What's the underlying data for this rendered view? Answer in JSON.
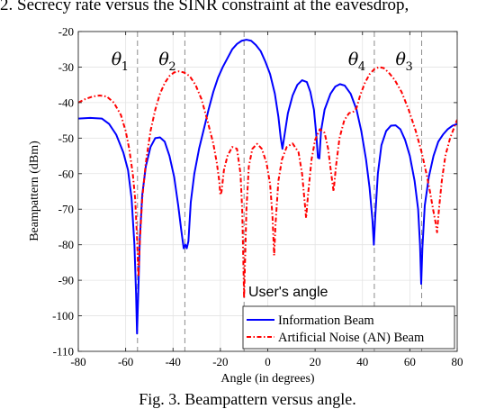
{
  "captions": {
    "top": "2.  Secrecy rate versus the SINR constraint at the eavesdrop,",
    "bottom": "Fig. 3.  Beampattern versus angle."
  },
  "chart_data": {
    "type": "line",
    "title": "",
    "xlabel": "Angle (in degrees)",
    "ylabel": "Beampattern (dBm)",
    "xlim": [
      -80,
      80
    ],
    "ylim": [
      -110,
      -20
    ],
    "xticks": [
      -80,
      -60,
      -40,
      -20,
      0,
      20,
      40,
      60,
      80
    ],
    "yticks": [
      -20,
      -30,
      -40,
      -50,
      -60,
      -70,
      -80,
      -90,
      -100,
      -110
    ],
    "grid": true,
    "legend_position": "bottom-right",
    "series": [
      {
        "name": "Information Beam",
        "color": "#0000ff",
        "style": "solid",
        "points": [
          [
            -80,
            -44.5
          ],
          [
            -75,
            -44.3
          ],
          [
            -70,
            -44.5
          ],
          [
            -67,
            -46
          ],
          [
            -64,
            -49
          ],
          [
            -61,
            -54
          ],
          [
            -59,
            -59
          ],
          [
            -57.5,
            -67
          ],
          [
            -56.3,
            -80
          ],
          [
            -55.6,
            -94
          ],
          [
            -55.2,
            -105
          ],
          [
            -54.6,
            -92
          ],
          [
            -54,
            -78
          ],
          [
            -53,
            -66
          ],
          [
            -51.5,
            -58
          ],
          [
            -49.5,
            -52.5
          ],
          [
            -47.5,
            -50
          ],
          [
            -45.5,
            -49.8
          ],
          [
            -43.5,
            -51
          ],
          [
            -41.5,
            -55
          ],
          [
            -39.5,
            -61
          ],
          [
            -37.8,
            -69
          ],
          [
            -36.5,
            -76
          ],
          [
            -35.5,
            -81
          ],
          [
            -34.8,
            -80
          ],
          [
            -34.2,
            -81
          ],
          [
            -33.5,
            -79
          ],
          [
            -32.5,
            -68
          ],
          [
            -31,
            -60
          ],
          [
            -29,
            -53
          ],
          [
            -27,
            -47.5
          ],
          [
            -25,
            -42
          ],
          [
            -23,
            -37
          ],
          [
            -21,
            -33
          ],
          [
            -19,
            -30
          ],
          [
            -17,
            -27.5
          ],
          [
            -15,
            -25
          ],
          [
            -13,
            -23.5
          ],
          [
            -11,
            -22.6
          ],
          [
            -9,
            -22.3
          ],
          [
            -7,
            -22.6
          ],
          [
            -5,
            -23.8
          ],
          [
            -3,
            -25.5
          ],
          [
            -1,
            -28.5
          ],
          [
            1,
            -32
          ],
          [
            3,
            -37.5
          ],
          [
            4.5,
            -44
          ],
          [
            5.5,
            -50
          ],
          [
            6.2,
            -53
          ],
          [
            7,
            -49.5
          ],
          [
            8.5,
            -43
          ],
          [
            10.5,
            -38
          ],
          [
            12.5,
            -35
          ],
          [
            14.5,
            -33.7
          ],
          [
            16.5,
            -34.2
          ],
          [
            18,
            -37
          ],
          [
            19.5,
            -42
          ],
          [
            20.5,
            -49
          ],
          [
            21.2,
            -55.5
          ],
          [
            21.8,
            -55.7
          ],
          [
            22.5,
            -48
          ],
          [
            24,
            -42
          ],
          [
            26.5,
            -37.5
          ],
          [
            28.5,
            -35.5
          ],
          [
            30.5,
            -34.8
          ],
          [
            32.5,
            -35.2
          ],
          [
            35,
            -37.5
          ],
          [
            37.5,
            -42
          ],
          [
            39.5,
            -48
          ],
          [
            41.5,
            -56
          ],
          [
            43,
            -64
          ],
          [
            44.2,
            -73
          ],
          [
            44.8,
            -80
          ],
          [
            45.4,
            -72
          ],
          [
            46.5,
            -60
          ],
          [
            48,
            -52
          ],
          [
            50,
            -48
          ],
          [
            52,
            -46.5
          ],
          [
            54,
            -46.4
          ],
          [
            56,
            -47.5
          ],
          [
            58,
            -50.5
          ],
          [
            60,
            -55
          ],
          [
            62,
            -62
          ],
          [
            63.5,
            -70
          ],
          [
            64.3,
            -80
          ],
          [
            64.8,
            -91
          ],
          [
            65.3,
            -81
          ],
          [
            66.3,
            -69
          ],
          [
            68,
            -61
          ],
          [
            70,
            -55
          ],
          [
            72,
            -51
          ],
          [
            74,
            -49
          ],
          [
            76,
            -47.5
          ],
          [
            78,
            -46.5
          ],
          [
            80,
            -46
          ]
        ]
      },
      {
        "name": "Artificial Noise (AN) Beam",
        "color": "#ff0000",
        "style": "dash-dot",
        "points": [
          [
            -80,
            -40
          ],
          [
            -77,
            -39
          ],
          [
            -74,
            -38.3
          ],
          [
            -71,
            -38
          ],
          [
            -68,
            -38.3
          ],
          [
            -65,
            -40
          ],
          [
            -62,
            -43.5
          ],
          [
            -60,
            -48
          ],
          [
            -58.5,
            -53
          ],
          [
            -57,
            -60
          ],
          [
            -56,
            -67
          ],
          [
            -55.2,
            -78
          ],
          [
            -54.6,
            -89
          ],
          [
            -54,
            -79
          ],
          [
            -53,
            -67
          ],
          [
            -51.5,
            -57
          ],
          [
            -49.5,
            -48
          ],
          [
            -47.5,
            -42
          ],
          [
            -45.5,
            -37.5
          ],
          [
            -43.5,
            -34.5
          ],
          [
            -41.5,
            -32.5
          ],
          [
            -39.5,
            -31.5
          ],
          [
            -37.5,
            -31.2
          ],
          [
            -35.5,
            -31.5
          ],
          [
            -33,
            -32.5
          ],
          [
            -30.5,
            -35
          ],
          [
            -28,
            -39
          ],
          [
            -25.5,
            -45
          ],
          [
            -23,
            -51.5
          ],
          [
            -21.5,
            -57
          ],
          [
            -20.5,
            -62
          ],
          [
            -20,
            -66
          ],
          [
            -19.5,
            -65
          ],
          [
            -18.5,
            -59
          ],
          [
            -17,
            -55
          ],
          [
            -15,
            -52.5
          ],
          [
            -13,
            -53
          ],
          [
            -11.5,
            -60
          ],
          [
            -10.8,
            -70
          ],
          [
            -10.3,
            -85
          ],
          [
            -10,
            -95
          ],
          [
            -9.6,
            -85
          ],
          [
            -9,
            -70
          ],
          [
            -8,
            -58
          ],
          [
            -6.5,
            -53
          ],
          [
            -4.5,
            -51.6
          ],
          [
            -2.5,
            -53
          ],
          [
            -0.5,
            -57
          ],
          [
            1,
            -63
          ],
          [
            2,
            -72
          ],
          [
            2.7,
            -83
          ],
          [
            3.3,
            -74
          ],
          [
            4.5,
            -62
          ],
          [
            6,
            -56
          ],
          [
            8,
            -52.5
          ],
          [
            10.5,
            -51.5
          ],
          [
            13,
            -54
          ],
          [
            14.5,
            -60
          ],
          [
            15.6,
            -68
          ],
          [
            16.2,
            -72.5
          ],
          [
            17,
            -66
          ],
          [
            18.5,
            -56
          ],
          [
            20,
            -50.5
          ],
          [
            22,
            -47.5
          ],
          [
            24,
            -48.5
          ],
          [
            25.5,
            -53
          ],
          [
            26.8,
            -60
          ],
          [
            27.8,
            -65
          ],
          [
            28.8,
            -58
          ],
          [
            30.3,
            -50
          ],
          [
            32.3,
            -45
          ],
          [
            34.3,
            -43
          ],
          [
            36.3,
            -42.5
          ],
          [
            37.5,
            -41.5
          ],
          [
            39,
            -38
          ],
          [
            41,
            -34.5
          ],
          [
            43,
            -32
          ],
          [
            45,
            -30.6
          ],
          [
            47,
            -30
          ],
          [
            49,
            -30.3
          ],
          [
            51,
            -31.5
          ],
          [
            53.5,
            -33.5
          ],
          [
            56.5,
            -37
          ],
          [
            59.5,
            -42
          ],
          [
            62.5,
            -48
          ],
          [
            65,
            -54
          ],
          [
            67,
            -60
          ],
          [
            68.5,
            -65
          ],
          [
            69.8,
            -70
          ],
          [
            70.8,
            -73.5
          ],
          [
            71.5,
            -76.5
          ],
          [
            72.3,
            -70
          ],
          [
            73.5,
            -62
          ],
          [
            75,
            -55
          ],
          [
            77,
            -50
          ],
          [
            79,
            -46.5
          ],
          [
            80,
            -44.8
          ]
        ]
      }
    ],
    "reference_lines": [
      {
        "label": "θ",
        "subscript": "1",
        "x": -55
      },
      {
        "label": "θ",
        "subscript": "2",
        "x": -35
      },
      {
        "label": "θ",
        "subscript": "4",
        "x": 45
      },
      {
        "label": "θ",
        "subscript": "3",
        "x": 65
      }
    ],
    "user_angle_line": {
      "x": -10,
      "label": "User's angle"
    }
  }
}
